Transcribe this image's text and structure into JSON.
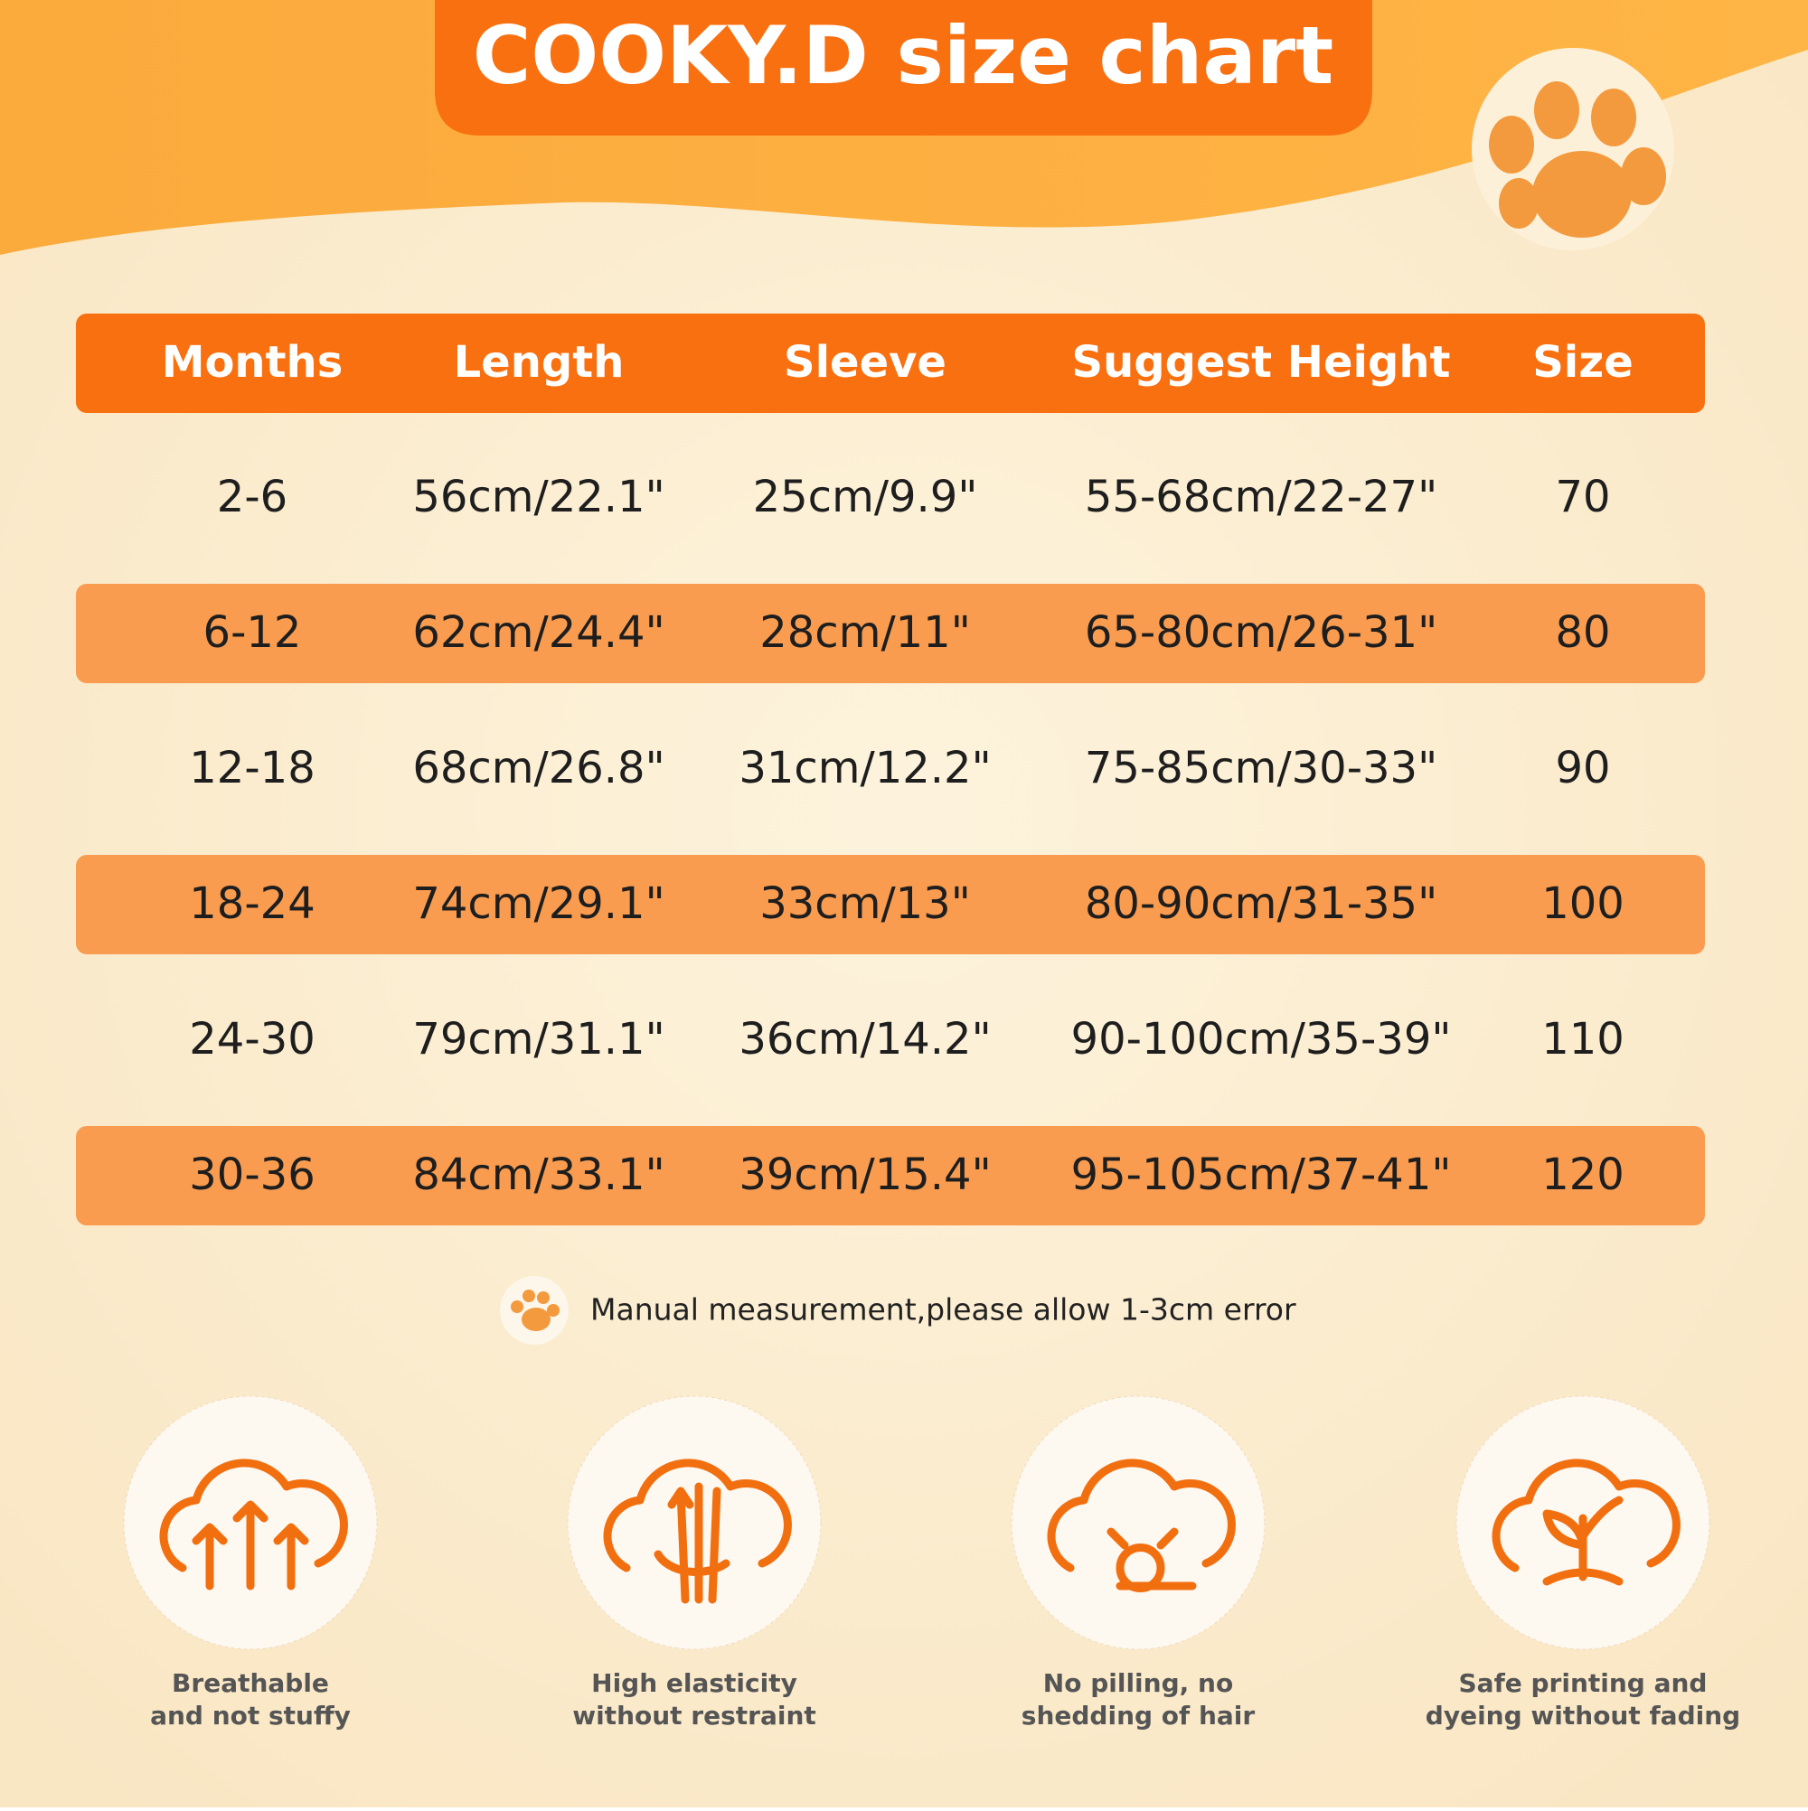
{
  "header": {
    "title": "COOKY.D size chart"
  },
  "table": {
    "columns": [
      "Months",
      "Length",
      "Sleeve",
      "Suggest Height",
      "Size"
    ],
    "rows": [
      [
        "2-6",
        "56cm/22.1\"",
        "25cm/9.9\"",
        "55-68cm/22-27\"",
        "70"
      ],
      [
        "6-12",
        "62cm/24.4\"",
        "28cm/11\"",
        "65-80cm/26-31\"",
        "80"
      ],
      [
        "12-18",
        "68cm/26.8\"",
        "31cm/12.2\"",
        "75-85cm/30-33\"",
        "90"
      ],
      [
        "18-24",
        "74cm/29.1\"",
        "33cm/13\"",
        "80-90cm/31-35\"",
        "100"
      ],
      [
        "24-30",
        "79cm/31.1\"",
        "36cm/14.2\"",
        "90-100cm/35-39\"",
        "110"
      ],
      [
        "30-36",
        "84cm/33.1\"",
        "39cm/15.4\"",
        "95-105cm/37-41\"",
        "120"
      ]
    ]
  },
  "note": "Manual measurement,please allow 1-3cm error",
  "features": [
    {
      "lines": [
        "Breathable",
        "and not stuffy"
      ]
    },
    {
      "lines": [
        "High elasticity",
        "without restraint"
      ]
    },
    {
      "lines": [
        "No pilling, no",
        "shedding of hair"
      ]
    },
    {
      "lines": [
        "Safe printing and",
        "dyeing without fading"
      ]
    }
  ]
}
